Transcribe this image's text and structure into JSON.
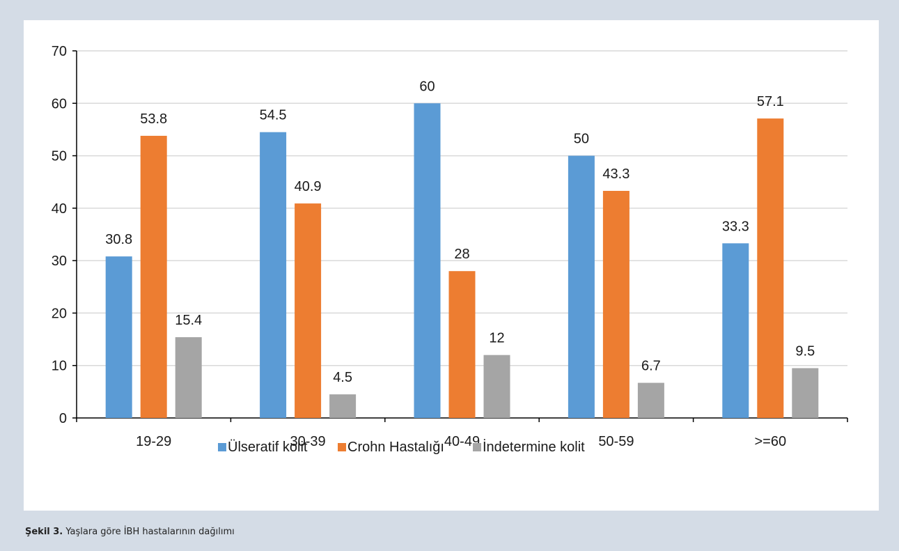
{
  "chart_data": {
    "type": "bar",
    "categories": [
      "19-29",
      "30-39",
      "40-49",
      "50-59",
      ">=60"
    ],
    "series": [
      {
        "name": "Ülseratif kolit",
        "color": "#5b9bd5",
        "values": [
          30.8,
          54.5,
          60,
          50,
          33.3
        ]
      },
      {
        "name": "Crohn Hastalığı",
        "color": "#ed7d31",
        "values": [
          53.8,
          40.9,
          28,
          43.3,
          57.1
        ]
      },
      {
        "name": "İndetermine kolit",
        "color": "#a5a5a5",
        "values": [
          15.4,
          4.5,
          12,
          6.7,
          9.5
        ]
      }
    ],
    "ylim": [
      0,
      70
    ],
    "yticks": [
      0,
      10,
      20,
      30,
      40,
      50,
      60,
      70
    ],
    "grid": true,
    "legend": "bottom"
  },
  "caption": {
    "label": "Şekil 3.",
    "text": "Yaşlara göre İBH hastalarının dağılımı"
  }
}
